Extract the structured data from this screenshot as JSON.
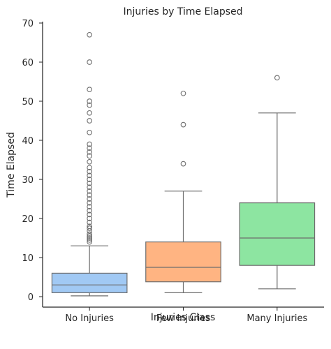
{
  "chart_data": {
    "type": "box",
    "title": "Injuries by Time Elapsed",
    "xlabel": "Injuries Class",
    "ylabel": "Time Elapsed",
    "categories": [
      "No Injuries",
      "Few Injuries",
      "Many Injuries"
    ],
    "yticks": [
      0,
      10,
      20,
      30,
      40,
      50,
      60,
      70
    ],
    "ylim": [
      -3,
      70
    ],
    "grid": false,
    "boxes": [
      {
        "category": "No Injuries",
        "color": "#a1c9f4",
        "whisker_low": 0.2,
        "q1": 1.0,
        "median": 3.0,
        "q3": 6.0,
        "whisker_high": 13.0,
        "outliers": [
          14.0,
          14.5,
          15.0,
          15.5,
          16.0,
          16.8,
          17.5,
          18.0,
          19.0,
          20.0,
          21.0,
          22.0,
          23.0,
          24.0,
          25.0,
          26.0,
          27.0,
          28.0,
          29.0,
          30.0,
          31.0,
          32.0,
          33.0,
          34.5,
          36.0,
          37.0,
          38.0,
          39.0,
          42.0,
          45.0,
          47.0,
          49.0,
          50.0,
          53.0,
          60.0,
          67.0
        ]
      },
      {
        "category": "Few Injuries",
        "color": "#ffb482",
        "whisker_low": 1.0,
        "q1": 3.8,
        "median": 7.5,
        "q3": 14.0,
        "whisker_high": 27.0,
        "outliers": [
          34.0,
          44.0,
          52.0
        ]
      },
      {
        "category": "Many Injuries",
        "color": "#8de5a1",
        "whisker_low": 2.0,
        "q1": 8.0,
        "median": 15.0,
        "q3": 24.0,
        "whisker_high": 47.0,
        "outliers": [
          56.0
        ]
      }
    ]
  }
}
